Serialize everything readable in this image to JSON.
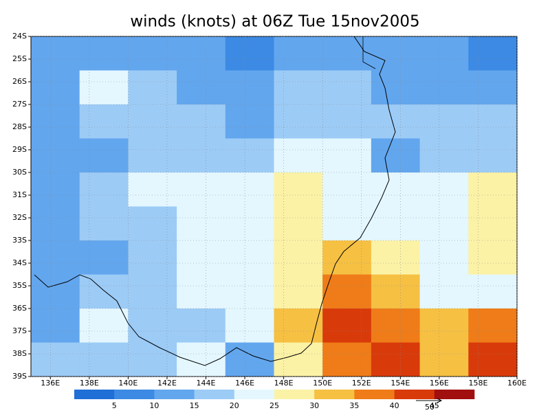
{
  "chart_data": {
    "type": "contour-map",
    "title": "winds (knots) at 06Z Tue 15nov2005",
    "xlim": [
      135,
      160
    ],
    "ylim": [
      -39,
      -24
    ],
    "xticks": [
      {
        "value": 136,
        "label": "136E"
      },
      {
        "value": 138,
        "label": "138E"
      },
      {
        "value": 140,
        "label": "140E"
      },
      {
        "value": 142,
        "label": "142E"
      },
      {
        "value": 144,
        "label": "144E"
      },
      {
        "value": 146,
        "label": "146E"
      },
      {
        "value": 148,
        "label": "148E"
      },
      {
        "value": 150,
        "label": "150E"
      },
      {
        "value": 152,
        "label": "152E"
      },
      {
        "value": 154,
        "label": "154E"
      },
      {
        "value": 156,
        "label": "156E"
      },
      {
        "value": 158,
        "label": "158E"
      },
      {
        "value": 160,
        "label": "160E"
      }
    ],
    "yticks": [
      {
        "value": -24,
        "label": "24S"
      },
      {
        "value": -25,
        "label": "25S"
      },
      {
        "value": -26,
        "label": "26S"
      },
      {
        "value": -27,
        "label": "27S"
      },
      {
        "value": -28,
        "label": "28S"
      },
      {
        "value": -29,
        "label": "29S"
      },
      {
        "value": -30,
        "label": "30S"
      },
      {
        "value": -31,
        "label": "31S"
      },
      {
        "value": -32,
        "label": "32S"
      },
      {
        "value": -33,
        "label": "33S"
      },
      {
        "value": -34,
        "label": "34S"
      },
      {
        "value": -35,
        "label": "35S"
      },
      {
        "value": -36,
        "label": "36S"
      },
      {
        "value": -37,
        "label": "37S"
      },
      {
        "value": -38,
        "label": "38S"
      },
      {
        "value": -39,
        "label": "39S"
      }
    ],
    "x": [
      136.25,
      138.75,
      141.25,
      143.75,
      146.25,
      148.75,
      151.25,
      153.75,
      156.25,
      158.75
    ],
    "y": [
      -24.75,
      -26.25,
      -27.75,
      -29.25,
      -30.75,
      -32.25,
      -33.75,
      -35.25,
      -36.75,
      -38.25
    ],
    "z": [
      [
        12,
        14,
        12,
        12,
        8,
        12,
        12,
        14,
        12,
        8
      ],
      [
        14,
        22,
        16,
        12,
        12,
        16,
        16,
        12,
        12,
        12
      ],
      [
        12,
        16,
        18,
        16,
        12,
        16,
        18,
        16,
        16,
        18
      ],
      [
        10,
        12,
        17,
        18,
        17,
        20,
        24,
        14,
        16,
        18
      ],
      [
        12,
        16,
        22,
        24,
        24,
        28,
        24,
        20,
        22,
        27
      ],
      [
        14,
        16,
        19,
        22,
        24,
        29,
        24,
        22,
        23,
        29
      ],
      [
        14,
        14,
        18,
        20,
        22,
        26,
        33,
        28,
        20,
        26
      ],
      [
        12,
        16,
        18,
        20,
        22,
        28,
        38,
        32,
        20,
        24
      ],
      [
        14,
        20,
        16,
        17,
        22,
        30,
        40,
        38,
        30,
        38
      ],
      [
        16,
        18,
        16,
        20,
        14,
        26,
        38,
        44,
        34,
        42
      ]
    ],
    "levels": [
      5,
      10,
      15,
      20,
      25,
      30,
      35,
      40,
      45
    ],
    "colors": [
      "#1f6fd6",
      "#3c8ae4",
      "#62a6ee",
      "#9ccbf6",
      "#e4f7ff",
      "#fbf2a6",
      "#f6c043",
      "#ef7c18",
      "#d93a0a",
      "#a10f0f"
    ],
    "reference_vector": 50
  }
}
